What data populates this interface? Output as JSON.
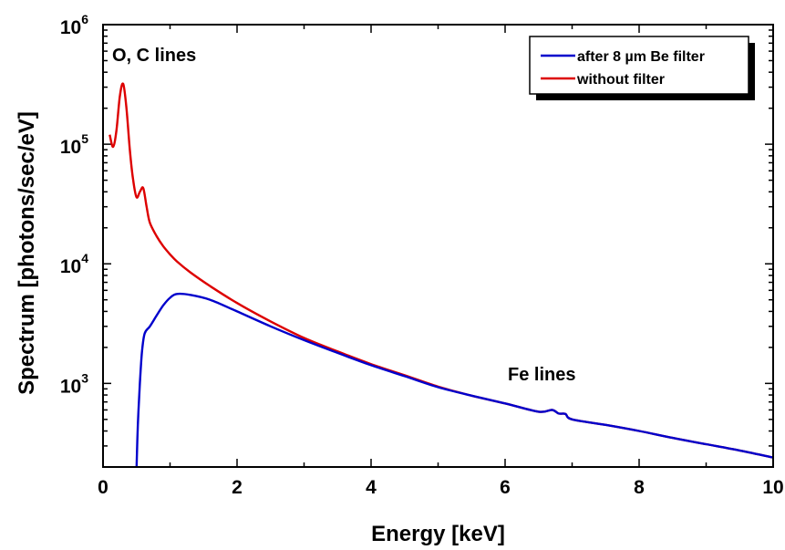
{
  "chart_data": {
    "type": "line",
    "xlabel": "Energy [keV]",
    "ylabel": "Spectrum [photons/sec/eV]",
    "xlim": [
      0,
      10
    ],
    "ylim": [
      200,
      1000000
    ],
    "yscale": "log",
    "x_ticks": [
      "0",
      "2",
      "4",
      "6",
      "8",
      "10"
    ],
    "y_ticks": [
      {
        "base": "10",
        "exp": "3",
        "value": 1000
      },
      {
        "base": "10",
        "exp": "4",
        "value": 10000
      },
      {
        "base": "10",
        "exp": "5",
        "value": 100000
      },
      {
        "base": "10",
        "exp": "6",
        "value": 1000000
      }
    ],
    "annotations": [
      {
        "text": "O, C lines",
        "x": 0.1,
        "y": 500000
      },
      {
        "text": "Fe lines",
        "x": 6.0,
        "y": 900
      }
    ],
    "legend": {
      "placement": "top-right",
      "entries": [
        "after 8 µm Be filter",
        "without filter"
      ]
    },
    "series": [
      {
        "name": "after 8 µm Be filter",
        "color": "#0000cc",
        "points": [
          [
            0.5,
            200
          ],
          [
            0.52,
            450
          ],
          [
            0.55,
            1000
          ],
          [
            0.58,
            1800
          ],
          [
            0.62,
            2600
          ],
          [
            0.7,
            3000
          ],
          [
            0.8,
            3700
          ],
          [
            0.9,
            4500
          ],
          [
            1.0,
            5200
          ],
          [
            1.1,
            5600
          ],
          [
            1.3,
            5500
          ],
          [
            1.6,
            5000
          ],
          [
            2.0,
            4000
          ],
          [
            2.5,
            3000
          ],
          [
            3.0,
            2300
          ],
          [
            3.5,
            1800
          ],
          [
            4.0,
            1420
          ],
          [
            4.5,
            1150
          ],
          [
            5.0,
            930
          ],
          [
            5.5,
            790
          ],
          [
            6.0,
            680
          ],
          [
            6.5,
            580
          ],
          [
            6.7,
            600
          ],
          [
            6.8,
            560
          ],
          [
            6.9,
            555
          ],
          [
            7.0,
            500
          ],
          [
            7.5,
            450
          ],
          [
            8.0,
            400
          ],
          [
            8.5,
            350
          ],
          [
            9.0,
            310
          ],
          [
            9.5,
            275
          ],
          [
            10.0,
            240
          ]
        ]
      },
      {
        "name": "without filter",
        "color": "#dd0000",
        "points": [
          [
            0.1,
            120000
          ],
          [
            0.15,
            95000
          ],
          [
            0.2,
            130000
          ],
          [
            0.25,
            250000
          ],
          [
            0.3,
            320000
          ],
          [
            0.35,
            200000
          ],
          [
            0.4,
            90000
          ],
          [
            0.45,
            50000
          ],
          [
            0.5,
            36000
          ],
          [
            0.55,
            40000
          ],
          [
            0.6,
            43000
          ],
          [
            0.65,
            30000
          ],
          [
            0.7,
            22000
          ],
          [
            0.8,
            17000
          ],
          [
            0.9,
            14000
          ],
          [
            1.0,
            12000
          ],
          [
            1.1,
            10500
          ],
          [
            1.3,
            8500
          ],
          [
            1.6,
            6500
          ],
          [
            2.0,
            4700
          ],
          [
            2.5,
            3300
          ],
          [
            3.0,
            2400
          ],
          [
            3.5,
            1850
          ],
          [
            4.0,
            1450
          ],
          [
            4.5,
            1170
          ],
          [
            5.0,
            940
          ],
          [
            5.5,
            790
          ],
          [
            6.0,
            680
          ],
          [
            6.5,
            580
          ],
          [
            6.7,
            600
          ],
          [
            6.8,
            560
          ],
          [
            6.9,
            555
          ],
          [
            7.0,
            500
          ],
          [
            7.5,
            450
          ],
          [
            8.0,
            400
          ],
          [
            8.5,
            350
          ],
          [
            9.0,
            310
          ],
          [
            9.5,
            275
          ],
          [
            10.0,
            240
          ]
        ]
      }
    ]
  }
}
